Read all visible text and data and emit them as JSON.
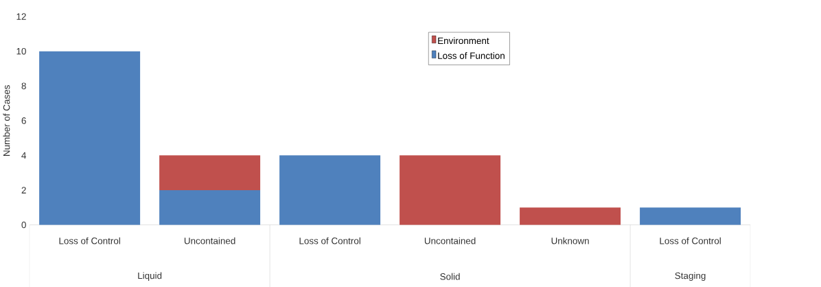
{
  "chart_data": {
    "type": "bar",
    "stacked": true,
    "ylabel": "Number of Cases",
    "categories": [
      "Loss of Control",
      "Uncontained",
      "Loss of Control",
      "Uncontained",
      "Unknown",
      "Loss of Control"
    ],
    "series": [
      {
        "name": "Loss of Function",
        "color": "#4f81bd",
        "values": [
          10,
          2,
          4,
          0,
          0,
          1
        ]
      },
      {
        "name": "Environment",
        "color": "#c0504d",
        "values": [
          0,
          2,
          0,
          4,
          1,
          0
        ]
      }
    ],
    "ylim": [
      0,
      12
    ],
    "yticks": [
      0,
      2,
      4,
      6,
      8,
      10,
      12
    ],
    "grid": false,
    "legend": "top",
    "annotations": [
      "Liquid",
      "Solid",
      "Staging"
    ]
  }
}
